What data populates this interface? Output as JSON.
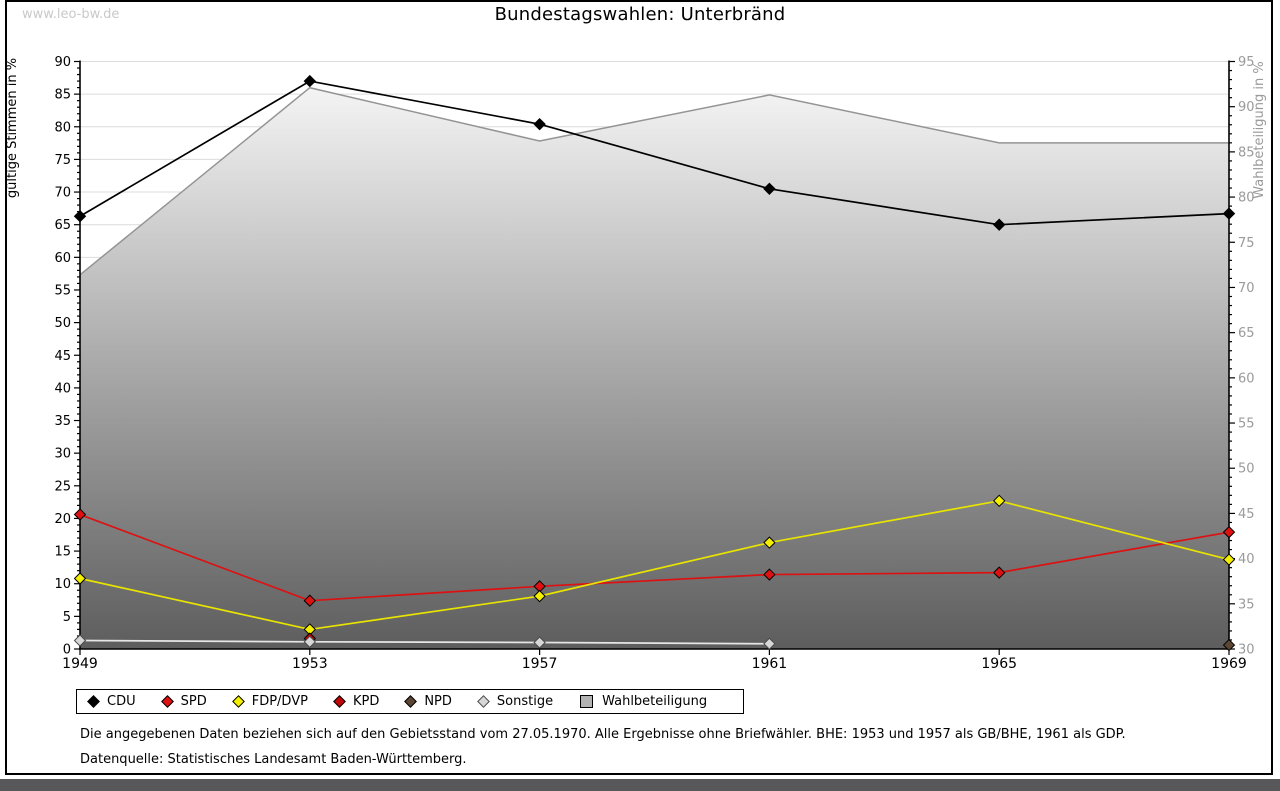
{
  "watermark": "www.leo-bw.de",
  "title": "Bundestagswahlen: Unterbränd",
  "footnotes": {
    "line1": "Die angegebenen Daten beziehen sich auf den Gebietsstand vom 27.05.1970. Alle Ergebnisse ohne Briefwähler. BHE: 1953 und 1957 als GB/BHE, 1961 als GDP.",
    "line2": "Datenquelle: Statistisches Landesamt Baden-Württemberg."
  },
  "colors": {
    "gridline": "#dcdcdc",
    "axis": "#000000",
    "right_axis_text": "#9a9a9a",
    "watermark_text": "#c9c9c9",
    "area_top": "#fbfbfb",
    "area_bottom": "#5d5d5d",
    "area_edge": "#949494",
    "bottom_bar": "#58585a",
    "legend_square_fill": "#b3b3b3"
  },
  "chart_data": {
    "type": "line",
    "title": "Bundestagswahlen: Unterbränd",
    "x": [
      1949,
      1953,
      1957,
      1961,
      1965,
      1969
    ],
    "left_axis": {
      "label": "gültige Stimmen in %",
      "min": 0,
      "max": 90,
      "tick_step": 5,
      "minor_step": 1
    },
    "right_axis": {
      "label": "Wahlbeteiligung in %",
      "min": 30,
      "max": 95,
      "tick_step": 5,
      "minor_step": 1
    },
    "grid": true,
    "legend_position": "bottom",
    "series": [
      {
        "name": "CDU",
        "axis": "left",
        "kind": "line",
        "marker": "diamond",
        "color": "#000000",
        "marker_fill": "#000000",
        "marker_stroke": "#000000",
        "values": [
          66.3,
          87.0,
          80.4,
          70.5,
          65.0,
          66.7
        ]
      },
      {
        "name": "SPD",
        "axis": "left",
        "kind": "line",
        "marker": "diamond",
        "color": "#dd1111",
        "marker_fill": "#dd1111",
        "marker_stroke": "#000000",
        "values": [
          20.6,
          7.4,
          9.6,
          11.4,
          11.7,
          17.9
        ]
      },
      {
        "name": "FDP/DVP",
        "axis": "left",
        "kind": "line",
        "marker": "diamond",
        "color": "#e8e400",
        "marker_fill": "#f4ee00",
        "marker_stroke": "#000000",
        "values": [
          10.8,
          3.0,
          8.1,
          16.3,
          22.7,
          13.7
        ]
      },
      {
        "name": "KPD",
        "axis": "left",
        "kind": "line",
        "marker": "diamond",
        "color": "#aa0a0a",
        "marker_fill": "#c00606",
        "marker_stroke": "#000000",
        "values": [
          null,
          1.6,
          null,
          null,
          null,
          null
        ]
      },
      {
        "name": "NPD",
        "axis": "left",
        "kind": "line",
        "marker": "diamond",
        "color": "#5a4632",
        "marker_fill": "#5a4632",
        "marker_stroke": "#000000",
        "values": [
          null,
          null,
          null,
          null,
          null,
          0.6
        ]
      },
      {
        "name": "Sonstige",
        "axis": "left",
        "kind": "line",
        "marker": "diamond",
        "color": "#e6e6e6",
        "marker_fill": "#d7d7d7",
        "marker_stroke": "#4a4a4a",
        "values": [
          1.3,
          1.1,
          1.0,
          0.8,
          null,
          null
        ]
      },
      {
        "name": "Wahlbeteiligung",
        "axis": "right",
        "kind": "area",
        "marker": "square",
        "color": "#949494",
        "marker_fill": "#b3b3b3",
        "marker_stroke": "#000000",
        "values": [
          71.4,
          92.1,
          86.2,
          91.3,
          86.0,
          86.0
        ]
      }
    ]
  }
}
